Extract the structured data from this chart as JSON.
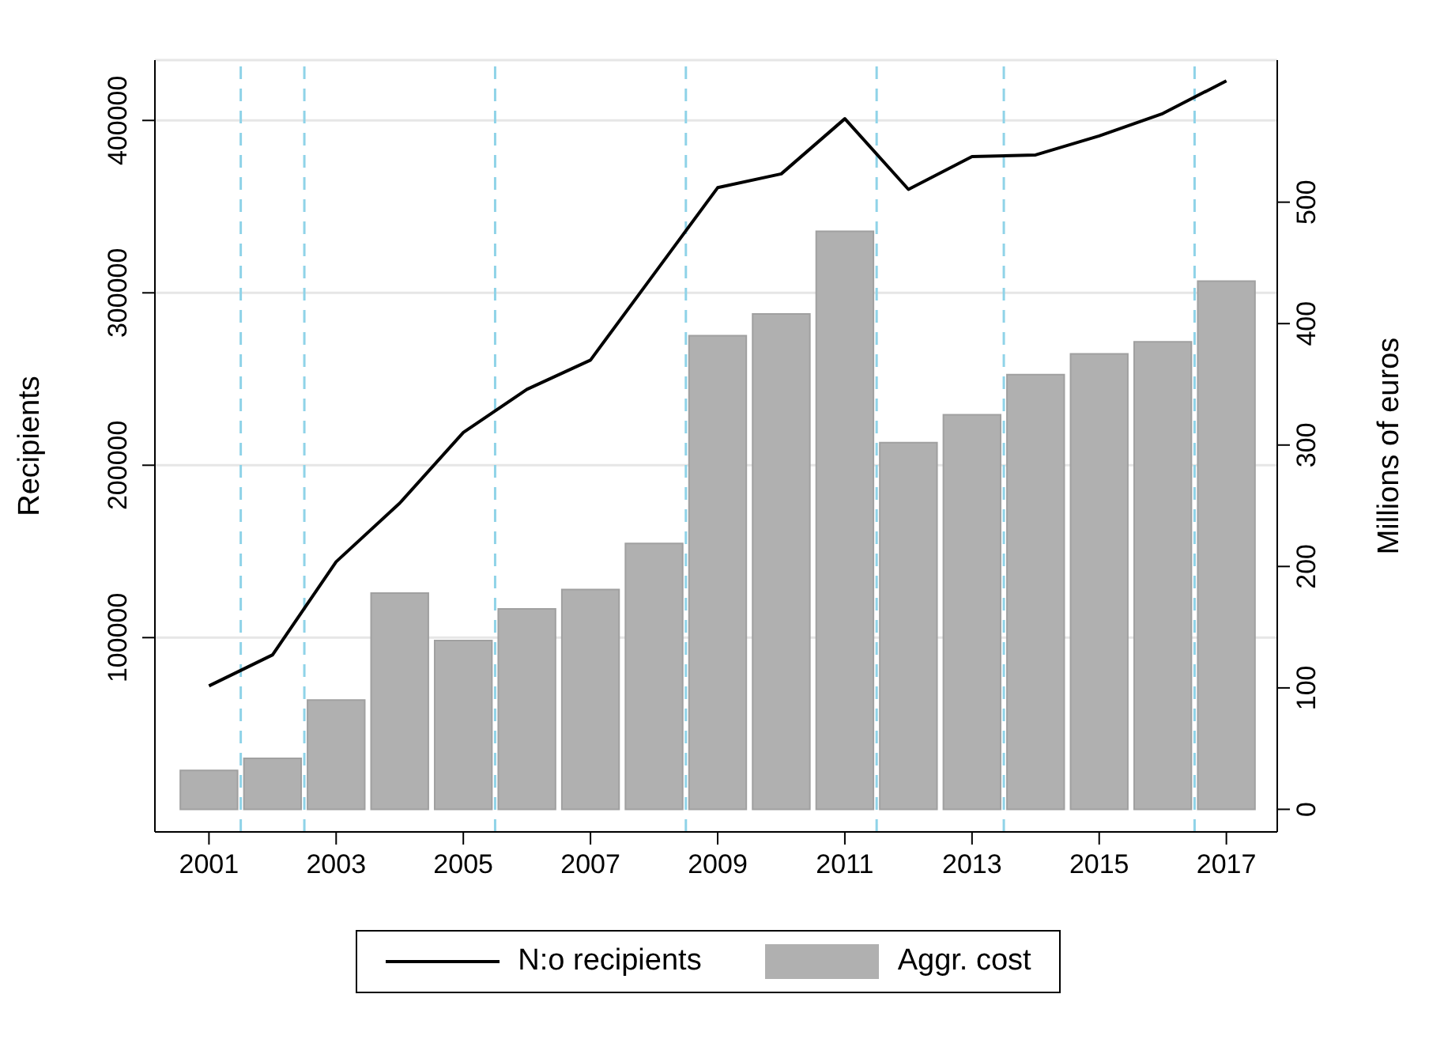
{
  "chart_data": {
    "type": "line",
    "x": [
      2001,
      2002,
      2003,
      2004,
      2005,
      2006,
      2007,
      2008,
      2009,
      2010,
      2011,
      2012,
      2013,
      2014,
      2015,
      2016,
      2017
    ],
    "series": [
      {
        "name": "N:o recipients",
        "color": "#000000",
        "values": [
          72000,
          90000,
          144000,
          178000,
          219000,
          244000,
          261000,
          311000,
          361000,
          369000,
          401000,
          360000,
          379000,
          380000,
          391000,
          404000,
          423000
        ]
      },
      {
        "name": "Aggr. cost",
        "type": "bar",
        "axis": "y2",
        "color": "#b0b0b0",
        "values": [
          32,
          42,
          90,
          178,
          139,
          165,
          181,
          219,
          390,
          408,
          476,
          302,
          325,
          358,
          375,
          385,
          435
        ]
      }
    ],
    "ylabel": "Recipients",
    "y2label": "Millions of euros",
    "xlim": [
      2000.15,
      2017.8
    ],
    "xticks": [
      2001,
      2003,
      2005,
      2007,
      2009,
      2011,
      2013,
      2015,
      2017
    ],
    "ylim": [
      -12700,
      435000
    ],
    "yticks": [
      100000,
      200000,
      300000,
      400000
    ],
    "y2lim": [
      -18.6,
      617
    ],
    "y2ticks": [
      0,
      100,
      200,
      300,
      400,
      500
    ],
    "ref_lines": [
      {
        "axis": "x",
        "value": 2001.5,
        "color": "#8fd3e8",
        "line_style": "dashed"
      },
      {
        "axis": "x",
        "value": 2002.5,
        "color": "#8fd3e8",
        "line_style": "dashed"
      },
      {
        "axis": "x",
        "value": 2005.5,
        "color": "#8fd3e8",
        "line_style": "dashed"
      },
      {
        "axis": "x",
        "value": 2008.5,
        "color": "#8fd3e8",
        "line_style": "dashed"
      },
      {
        "axis": "x",
        "value": 2011.5,
        "color": "#8fd3e8",
        "line_style": "dashed"
      },
      {
        "axis": "x",
        "value": 2013.5,
        "color": "#8fd3e8",
        "line_style": "dashed"
      },
      {
        "axis": "x",
        "value": 2016.5,
        "color": "#8fd3e8",
        "line_style": "dashed"
      }
    ],
    "grid": "y",
    "legend": "bottom",
    "marker": "none"
  }
}
